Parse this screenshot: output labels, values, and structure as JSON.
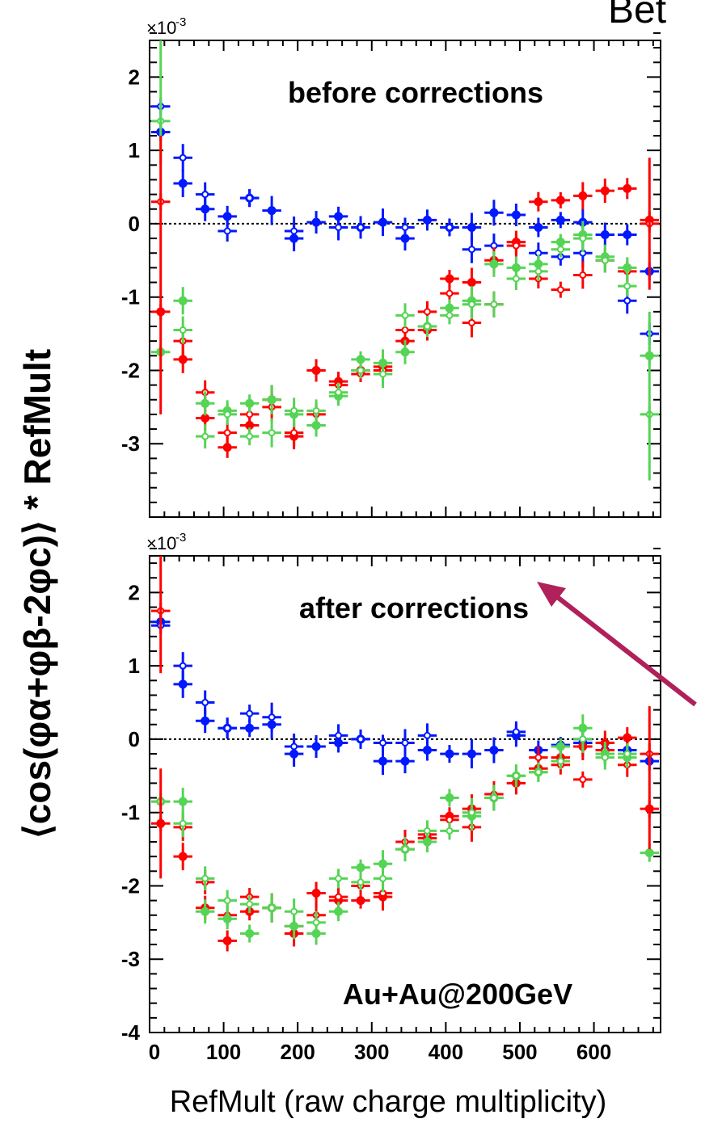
{
  "header_fragment": "Bet",
  "y_axis_label": "⟨cos(φα+φβ-2φc)⟩ * RefMult",
  "x_axis_label": "RefMult (raw charge multiplicity)",
  "colors": {
    "blue": "#0018ff",
    "red": "#ff0000",
    "green": "#55d455",
    "arrow": "#b0205a"
  },
  "chart_data": [
    {
      "type": "scatter",
      "title": "before corrections",
      "scale_label": "×10",
      "scale_exp": "-3",
      "xlim": [
        0,
        690
      ],
      "ylim": [
        -4,
        2.5
      ],
      "y_ticks": [
        -3,
        -2,
        -1,
        0,
        1,
        2
      ],
      "y_tick_labels": [
        "-3",
        "-2",
        "-1",
        "0",
        "1",
        "2"
      ],
      "x_tick_labels_shown": false,
      "x_bin_width": 30,
      "series": [
        {
          "color": "blue",
          "open": [
            [
              15,
              1.6
            ],
            [
              45,
              0.9
            ],
            [
              75,
              0.4
            ],
            [
              105,
              -0.1
            ],
            [
              135,
              0.35
            ],
            [
              195,
              -0.1
            ],
            [
              255,
              -0.05
            ],
            [
              285,
              -0.05
            ],
            [
              345,
              -0.05
            ],
            [
              405,
              -0.05
            ],
            [
              435,
              -0.35
            ],
            [
              465,
              -0.3
            ],
            [
              525,
              -0.4
            ],
            [
              555,
              -0.45
            ],
            [
              585,
              -0.4
            ],
            [
              645,
              -1.05
            ],
            [
              675,
              -1.5
            ]
          ],
          "filled": [
            [
              15,
              1.25
            ],
            [
              45,
              0.55
            ],
            [
              75,
              0.2
            ],
            [
              105,
              0.1
            ],
            [
              135,
              0.35
            ],
            [
              165,
              0.18
            ],
            [
              195,
              -0.2
            ],
            [
              225,
              0.02
            ],
            [
              255,
              0.1
            ],
            [
              285,
              -0.05
            ],
            [
              315,
              0.02
            ],
            [
              345,
              -0.2
            ],
            [
              375,
              0.05
            ],
            [
              405,
              -0.05
            ],
            [
              435,
              -0.05
            ],
            [
              465,
              0.15
            ],
            [
              495,
              0.12
            ],
            [
              525,
              -0.05
            ],
            [
              555,
              0.05
            ],
            [
              585,
              0.02
            ],
            [
              615,
              -0.15
            ],
            [
              645,
              -0.15
            ],
            [
              675,
              -0.65
            ]
          ]
        },
        {
          "color": "red",
          "open": [
            [
              15,
              0.3
            ],
            [
              45,
              -1.6
            ],
            [
              75,
              -2.3
            ],
            [
              105,
              -2.85
            ],
            [
              135,
              -2.6
            ],
            [
              165,
              -2.5
            ],
            [
              195,
              -2.85
            ],
            [
              225,
              -2.6
            ],
            [
              255,
              -2.2
            ],
            [
              285,
              -2.05
            ],
            [
              315,
              -2.0
            ],
            [
              345,
              -1.45
            ],
            [
              375,
              -1.2
            ],
            [
              405,
              -0.95
            ],
            [
              435,
              -1.35
            ],
            [
              465,
              -1.1
            ],
            [
              495,
              -0.3
            ],
            [
              525,
              -0.75
            ],
            [
              555,
              -0.9
            ],
            [
              585,
              -0.7
            ],
            [
              615,
              -0.5
            ],
            [
              645,
              -0.65
            ],
            [
              675,
              0.0
            ]
          ],
          "filled": [
            [
              15,
              -1.2
            ],
            [
              45,
              -1.85
            ],
            [
              75,
              -2.65
            ],
            [
              105,
              -3.05
            ],
            [
              135,
              -2.75
            ],
            [
              165,
              -2.4
            ],
            [
              195,
              -2.9
            ],
            [
              225,
              -2.0
            ],
            [
              255,
              -2.15
            ],
            [
              285,
              -2.0
            ],
            [
              315,
              -1.95
            ],
            [
              345,
              -1.6
            ],
            [
              375,
              -1.45
            ],
            [
              405,
              -0.75
            ],
            [
              435,
              -0.8
            ],
            [
              465,
              -0.5
            ],
            [
              495,
              -0.25
            ],
            [
              525,
              0.3
            ],
            [
              555,
              0.32
            ],
            [
              585,
              0.38
            ],
            [
              615,
              0.45
            ],
            [
              645,
              0.48
            ],
            [
              675,
              0.05
            ]
          ]
        },
        {
          "color": "green",
          "open": [
            [
              15,
              1.4
            ],
            [
              45,
              -1.45
            ],
            [
              75,
              -2.9
            ],
            [
              105,
              -2.6
            ],
            [
              135,
              -2.9
            ],
            [
              165,
              -2.85
            ],
            [
              195,
              -2.55
            ],
            [
              225,
              -2.55
            ],
            [
              255,
              -2.3
            ],
            [
              285,
              -2.0
            ],
            [
              315,
              -2.05
            ],
            [
              345,
              -1.25
            ],
            [
              375,
              -1.4
            ],
            [
              405,
              -1.25
            ],
            [
              435,
              -1.1
            ],
            [
              465,
              -1.1
            ],
            [
              495,
              -0.75
            ],
            [
              525,
              -0.65
            ],
            [
              555,
              -0.35
            ],
            [
              585,
              -0.2
            ],
            [
              615,
              -0.5
            ],
            [
              645,
              -0.85
            ],
            [
              675,
              -2.6
            ]
          ],
          "filled": [
            [
              15,
              -1.75
            ],
            [
              45,
              -1.05
            ],
            [
              75,
              -2.45
            ],
            [
              105,
              -2.55
            ],
            [
              135,
              -2.45
            ],
            [
              165,
              -2.4
            ],
            [
              195,
              -2.6
            ],
            [
              225,
              -2.75
            ],
            [
              255,
              -2.35
            ],
            [
              285,
              -1.85
            ],
            [
              315,
              -1.9
            ],
            [
              345,
              -1.75
            ],
            [
              375,
              -1.4
            ],
            [
              405,
              -1.15
            ],
            [
              435,
              -1.05
            ],
            [
              465,
              -0.55
            ],
            [
              495,
              -0.6
            ],
            [
              525,
              -0.55
            ],
            [
              555,
              -0.25
            ],
            [
              585,
              -0.15
            ],
            [
              615,
              -0.45
            ],
            [
              645,
              -0.6
            ],
            [
              675,
              -1.8
            ]
          ]
        }
      ]
    },
    {
      "type": "scatter",
      "title": "after corrections",
      "scale_label": "×10",
      "scale_exp": "-3",
      "xlim": [
        0,
        690
      ],
      "ylim": [
        -4,
        2.5
      ],
      "y_ticks": [
        -4,
        -3,
        -2,
        -1,
        0,
        1,
        2
      ],
      "y_tick_labels": [
        "-4",
        "-3",
        "-2",
        "-1",
        "0",
        "1",
        "2"
      ],
      "x_ticks": [
        0,
        100,
        200,
        300,
        400,
        500,
        600
      ],
      "x_tick_labels": [
        "0",
        "100",
        "200",
        "300",
        "400",
        "500",
        "600"
      ],
      "x_bin_width": 30,
      "annotation": "Au+Au@200GeV",
      "series": [
        {
          "color": "blue",
          "open": [
            [
              15,
              1.55
            ],
            [
              45,
              1.0
            ],
            [
              75,
              0.5
            ],
            [
              105,
              0.15
            ],
            [
              135,
              0.35
            ],
            [
              165,
              0.3
            ],
            [
              195,
              -0.1
            ],
            [
              255,
              0.05
            ],
            [
              285,
              0.0
            ],
            [
              315,
              -0.05
            ],
            [
              345,
              -0.05
            ],
            [
              375,
              0.05
            ],
            [
              495,
              0.1
            ],
            [
              585,
              0.0
            ]
          ],
          "filled": [
            [
              15,
              1.6
            ],
            [
              45,
              0.75
            ],
            [
              75,
              0.25
            ],
            [
              105,
              0.15
            ],
            [
              135,
              0.15
            ],
            [
              165,
              0.2
            ],
            [
              195,
              -0.2
            ],
            [
              225,
              -0.1
            ],
            [
              255,
              -0.05
            ],
            [
              285,
              0.0
            ],
            [
              315,
              -0.3
            ],
            [
              345,
              -0.3
            ],
            [
              375,
              -0.15
            ],
            [
              405,
              -0.2
            ],
            [
              435,
              -0.2
            ],
            [
              465,
              -0.15
            ],
            [
              495,
              0.05
            ],
            [
              525,
              -0.15
            ],
            [
              555,
              -0.08
            ],
            [
              585,
              -0.05
            ],
            [
              615,
              -0.15
            ],
            [
              645,
              -0.15
            ],
            [
              675,
              -0.3
            ]
          ]
        },
        {
          "color": "red",
          "open": [
            [
              15,
              1.75
            ],
            [
              45,
              -1.2
            ],
            [
              75,
              -1.95
            ],
            [
              105,
              -2.4
            ],
            [
              135,
              -2.15
            ],
            [
              165,
              -2.3
            ],
            [
              195,
              -2.55
            ],
            [
              225,
              -2.4
            ],
            [
              255,
              -2.15
            ],
            [
              285,
              -2.0
            ],
            [
              315,
              -2.1
            ],
            [
              345,
              -1.4
            ],
            [
              375,
              -1.3
            ],
            [
              405,
              -1.1
            ],
            [
              435,
              -1.2
            ],
            [
              465,
              -0.75
            ],
            [
              525,
              -0.25
            ],
            [
              555,
              -0.35
            ],
            [
              585,
              -0.55
            ],
            [
              615,
              -0.15
            ],
            [
              645,
              -0.35
            ],
            [
              675,
              -0.2
            ]
          ],
          "filled": [
            [
              15,
              -1.15
            ],
            [
              45,
              -1.6
            ],
            [
              75,
              -2.3
            ],
            [
              105,
              -2.75
            ],
            [
              135,
              -2.35
            ],
            [
              165,
              -2.3
            ],
            [
              195,
              -2.65
            ],
            [
              225,
              -2.1
            ],
            [
              255,
              -2.2
            ],
            [
              285,
              -2.2
            ],
            [
              315,
              -2.15
            ],
            [
              345,
              -1.5
            ],
            [
              375,
              -1.35
            ],
            [
              405,
              -1.05
            ],
            [
              435,
              -0.95
            ],
            [
              465,
              -0.8
            ],
            [
              495,
              -0.6
            ],
            [
              525,
              -0.4
            ],
            [
              555,
              -0.25
            ],
            [
              585,
              -0.1
            ],
            [
              615,
              -0.05
            ],
            [
              645,
              0.02
            ],
            [
              675,
              -0.95
            ]
          ]
        },
        {
          "color": "green",
          "open": [
            [
              15,
              -0.85
            ],
            [
              45,
              -1.15
            ],
            [
              75,
              -1.9
            ],
            [
              105,
              -2.2
            ],
            [
              135,
              -2.25
            ],
            [
              165,
              -2.3
            ],
            [
              195,
              -2.35
            ],
            [
              225,
              -2.5
            ],
            [
              255,
              -1.9
            ],
            [
              285,
              -1.95
            ],
            [
              315,
              -1.9
            ],
            [
              345,
              -1.5
            ],
            [
              375,
              -1.25
            ],
            [
              405,
              -1.25
            ],
            [
              435,
              -1.0
            ],
            [
              465,
              -0.8
            ],
            [
              495,
              -0.5
            ],
            [
              525,
              -0.45
            ],
            [
              555,
              -0.3
            ],
            [
              585,
              0.0
            ],
            [
              615,
              -0.25
            ],
            [
              645,
              -0.2
            ]
          ],
          "filled": [
            [
              15,
              -0.85
            ],
            [
              45,
              -0.85
            ],
            [
              75,
              -2.35
            ],
            [
              105,
              -2.45
            ],
            [
              135,
              -2.65
            ],
            [
              165,
              -2.3
            ],
            [
              195,
              -2.55
            ],
            [
              225,
              -2.65
            ],
            [
              255,
              -2.35
            ],
            [
              285,
              -1.75
            ],
            [
              315,
              -1.7
            ],
            [
              345,
              -1.5
            ],
            [
              375,
              -1.4
            ],
            [
              405,
              -0.8
            ],
            [
              435,
              -1.05
            ],
            [
              465,
              -0.8
            ],
            [
              495,
              -0.5
            ],
            [
              525,
              -0.45
            ],
            [
              555,
              -0.1
            ],
            [
              585,
              0.15
            ],
            [
              615,
              -0.2
            ],
            [
              645,
              -0.25
            ],
            [
              675,
              -1.55
            ]
          ]
        }
      ]
    }
  ]
}
